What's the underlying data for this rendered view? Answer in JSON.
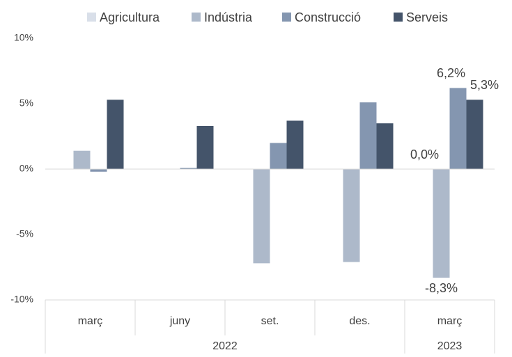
{
  "chart_data": {
    "type": "bar",
    "categories": [
      "març",
      "juny",
      "set.",
      "des.",
      "març"
    ],
    "groups": [
      {
        "label": "2022",
        "span": 4
      },
      {
        "label": "2023",
        "span": 1
      }
    ],
    "series": [
      {
        "name": "Agricultura",
        "color": "#d9dfe9",
        "values": [
          0,
          0,
          0,
          0,
          0
        ],
        "value_labels": [
          null,
          null,
          null,
          null,
          "0,0%"
        ]
      },
      {
        "name": "Indústria",
        "color": "#adb9ca",
        "values": [
          1.4,
          0,
          -7.2,
          -7.1,
          -8.3
        ],
        "value_labels": [
          null,
          null,
          null,
          null,
          "-8,3%"
        ]
      },
      {
        "name": "Construcció",
        "color": "#8496b0",
        "values": [
          -0.2,
          0.1,
          2.0,
          5.1,
          6.2
        ],
        "value_labels": [
          null,
          null,
          null,
          null,
          "6,2%"
        ]
      },
      {
        "name": "Serveis",
        "color": "#44546a",
        "values": [
          5.3,
          3.3,
          3.7,
          3.5,
          5.3
        ],
        "value_labels": [
          null,
          null,
          null,
          null,
          "5,3%"
        ]
      }
    ],
    "ylim": [
      -10,
      10
    ],
    "yticks": [
      {
        "value": -10,
        "label": "-10%"
      },
      {
        "value": -5,
        "label": "-5%"
      },
      {
        "value": 0,
        "label": "0%"
      },
      {
        "value": 5,
        "label": "5%"
      },
      {
        "value": 10,
        "label": "10%"
      }
    ],
    "grid": false,
    "legend": "top"
  }
}
